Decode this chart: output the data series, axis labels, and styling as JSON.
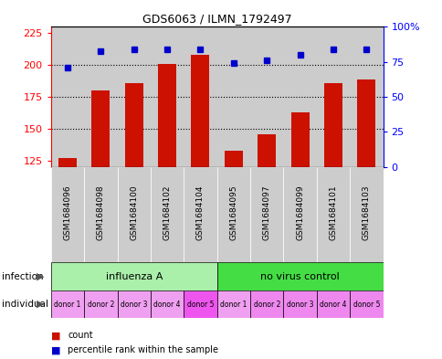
{
  "title": "GDS6063 / ILMN_1792497",
  "samples": [
    "GSM1684096",
    "GSM1684098",
    "GSM1684100",
    "GSM1684102",
    "GSM1684104",
    "GSM1684095",
    "GSM1684097",
    "GSM1684099",
    "GSM1684101",
    "GSM1684103"
  ],
  "red_values": [
    127,
    180,
    186,
    201,
    208,
    133,
    146,
    163,
    186,
    189
  ],
  "blue_values": [
    71,
    83,
    84,
    84,
    84,
    74,
    76,
    80,
    84,
    84
  ],
  "ylim_left": [
    120,
    230
  ],
  "ylim_right": [
    0,
    100
  ],
  "yticks_left": [
    125,
    150,
    175,
    200,
    225
  ],
  "yticks_right": [
    0,
    25,
    50,
    75,
    100
  ],
  "infection_groups": [
    {
      "label": "influenza A",
      "start": 0,
      "end": 5,
      "color": "#aaf0aa"
    },
    {
      "label": "no virus control",
      "start": 5,
      "end": 10,
      "color": "#44dd44"
    }
  ],
  "individual_labels": [
    "donor 1",
    "donor 2",
    "donor 3",
    "donor 4",
    "donor 5",
    "donor 1",
    "donor 2",
    "donor 3",
    "donor 4",
    "donor 5"
  ],
  "individual_colors": [
    "#f0a0f0",
    "#f0a0f0",
    "#f0a0f0",
    "#f0a0f0",
    "#ee55ee",
    "#f0a0f0",
    "#ee88ee",
    "#ee88ee",
    "#ee88ee",
    "#ee88ee"
  ],
  "bar_color": "#cc1100",
  "dot_color": "#0000cc",
  "bar_width": 0.55,
  "sample_bg_color": "#cccccc",
  "legend_count_color": "#cc1100",
  "legend_dot_color": "#0000cc",
  "right_ytick_labels": [
    "0",
    "25",
    "50",
    "75",
    "100%"
  ]
}
